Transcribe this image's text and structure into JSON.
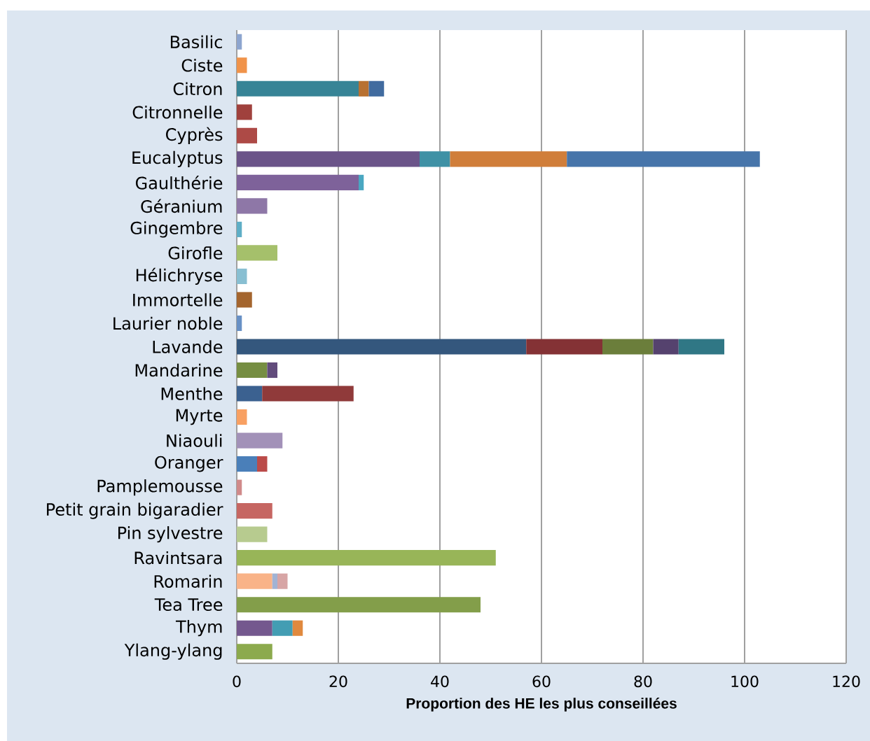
{
  "chart_data": {
    "type": "bar",
    "orientation": "horizontal",
    "stacked": true,
    "xlabel": "Proportion des HE les plus conseillées",
    "categories": [
      "Basilic",
      "Ciste",
      "Citron",
      "Citronnelle",
      "Cyprès",
      "Eucalyptus",
      "Gaulthérie",
      "Géranium",
      "Gingembre",
      "Girofle",
      "Hélichryse",
      "Immortelle",
      "Laurier noble",
      "Lavande",
      "Mandarine",
      "Menthe",
      "Myrte",
      "Niaouli",
      "Oranger",
      "Pamplemousse",
      "Petit grain bigaradier",
      "Pin sylvestre",
      "Ravintsara",
      "Romarin",
      "Tea Tree",
      "Thym",
      "Ylang-ylang"
    ],
    "series": [
      {
        "values": [
          1,
          2,
          24,
          3,
          4,
          36,
          24,
          6,
          1,
          8,
          2,
          3,
          1,
          57,
          6,
          5,
          2,
          9,
          4,
          1,
          7,
          6,
          51,
          7,
          48,
          7,
          7
        ],
        "colors": [
          "#8da5cf",
          "#f0934a",
          "#378496",
          "#a0413d",
          "#ad4a46",
          "#6b5489",
          "#7e629a",
          "#8e77a7",
          "#5eaec6",
          "#a5c06b",
          "#88bfd2",
          "#a4652e",
          "#6890c5",
          "#34577d",
          "#768e42",
          "#3b6190",
          "#f8a062",
          "#a291b8",
          "#4a7fb9",
          "#d08a8a",
          "#c66662",
          "#b7cb8f",
          "#98b558",
          "#f9b388",
          "#839e4a",
          "#74588e",
          "#8caa4d"
        ]
      },
      {
        "values": [
          null,
          null,
          2,
          null,
          null,
          6,
          1,
          null,
          null,
          null,
          null,
          null,
          null,
          15,
          2,
          18,
          null,
          null,
          2,
          null,
          null,
          null,
          null,
          1,
          null,
          4,
          null
        ],
        "colors": [
          null,
          null,
          "#b87132",
          null,
          null,
          "#3f91a5",
          "#4aa7c1",
          null,
          null,
          null,
          null,
          null,
          null,
          "#843235",
          "#624c7c",
          "#903a3a",
          null,
          null,
          "#bb4b49",
          null,
          null,
          null,
          null,
          "#a1b3d4",
          null,
          "#439db3",
          null
        ]
      },
      {
        "values": [
          null,
          null,
          3,
          null,
          null,
          23,
          null,
          null,
          null,
          null,
          null,
          null,
          null,
          10,
          null,
          null,
          null,
          null,
          null,
          null,
          null,
          null,
          null,
          2,
          null,
          2,
          null
        ],
        "colors": [
          null,
          null,
          "#416b9f",
          null,
          null,
          "#d07e3a",
          null,
          null,
          null,
          null,
          null,
          null,
          null,
          "#6b7e3b",
          null,
          null,
          null,
          null,
          null,
          null,
          null,
          null,
          null,
          "#d7a5a5",
          null,
          "#e0893e",
          null
        ]
      },
      {
        "values": [
          null,
          null,
          null,
          null,
          null,
          38,
          null,
          null,
          null,
          null,
          null,
          null,
          null,
          5,
          null,
          null,
          null,
          null,
          null,
          null,
          null,
          null,
          null,
          null,
          null,
          null,
          null
        ],
        "colors": [
          null,
          null,
          null,
          null,
          null,
          "#4775aa",
          null,
          null,
          null,
          null,
          null,
          null,
          null,
          "#55426e",
          null,
          null,
          null,
          null,
          null,
          null,
          null,
          null,
          null,
          null,
          null,
          null,
          null
        ]
      },
      {
        "values": [
          null,
          null,
          null,
          null,
          null,
          null,
          null,
          null,
          null,
          null,
          null,
          null,
          null,
          9,
          null,
          null,
          null,
          null,
          null,
          null,
          null,
          null,
          null,
          null,
          null,
          null,
          null
        ],
        "colors": [
          null,
          null,
          null,
          null,
          null,
          null,
          null,
          null,
          null,
          null,
          null,
          null,
          null,
          "#307785",
          null,
          null,
          null,
          null,
          null,
          null,
          null,
          null,
          null,
          null,
          null,
          null,
          null
        ]
      }
    ],
    "xlim": [
      0,
      120
    ],
    "xticks": [
      0,
      20,
      40,
      60,
      80,
      100,
      120
    ],
    "grid": "x"
  }
}
